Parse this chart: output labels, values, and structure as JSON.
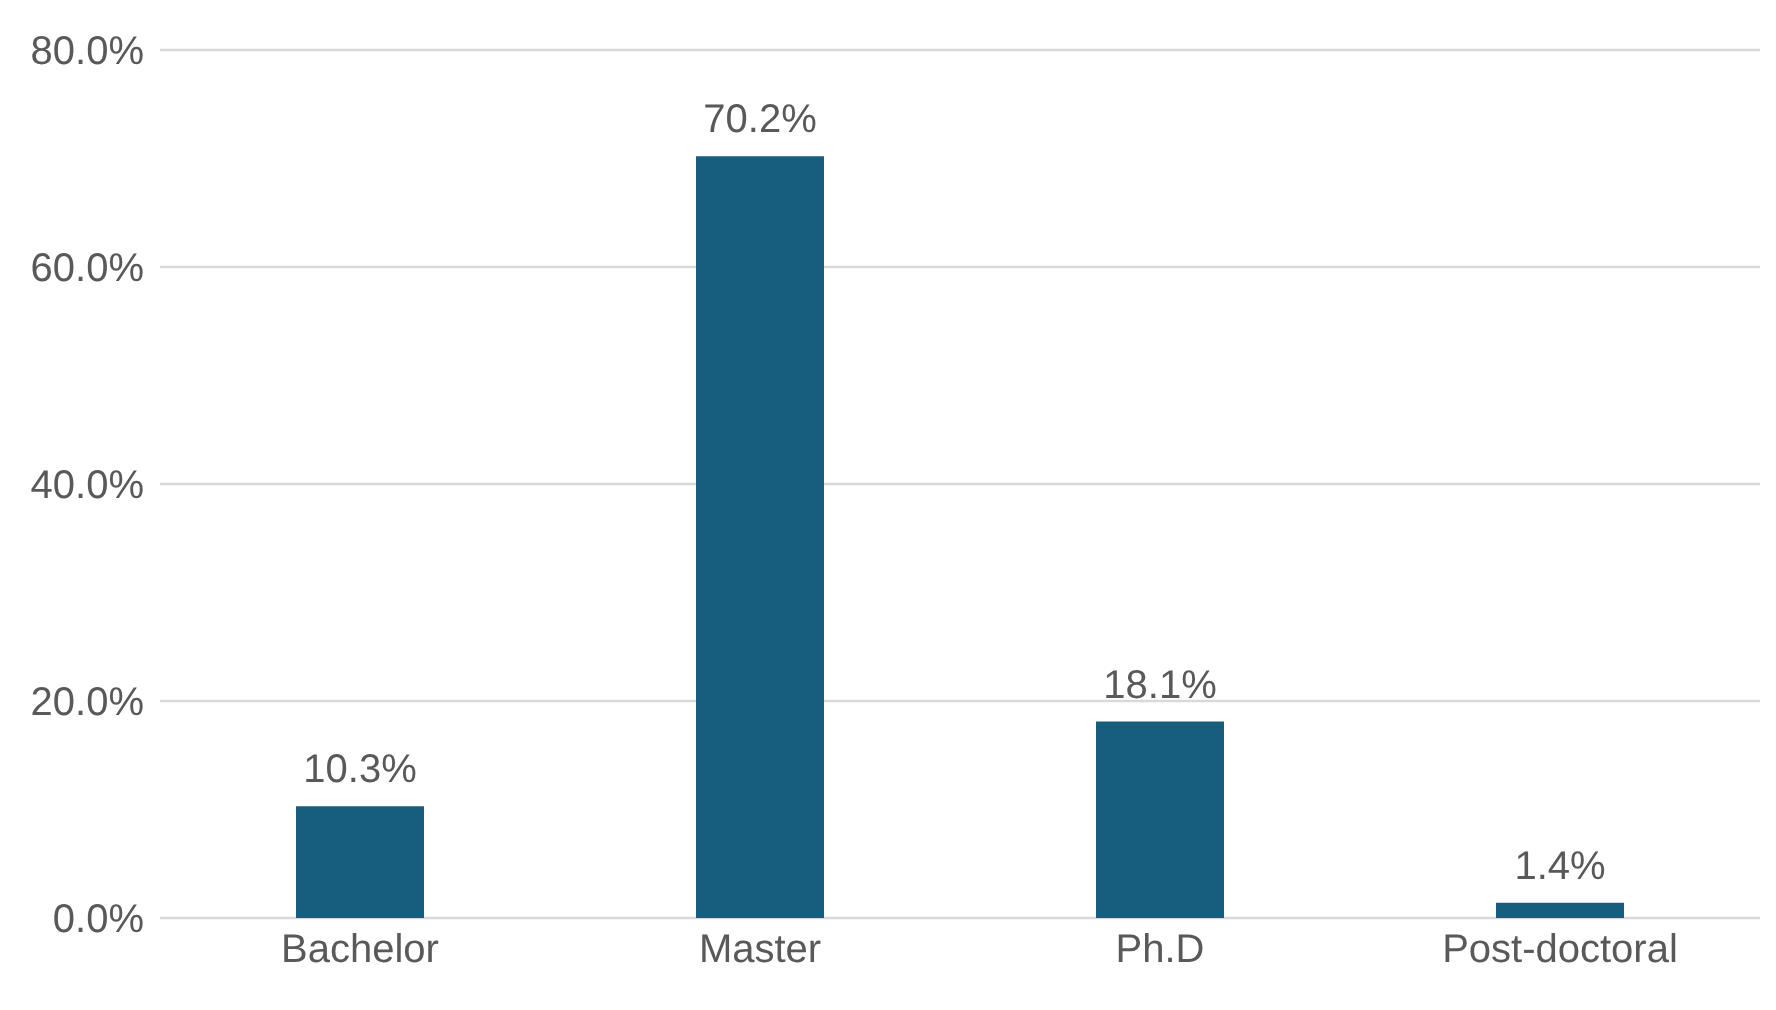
{
  "chart_data": {
    "type": "bar",
    "categories": [
      "Bachelor",
      "Master",
      "Ph.D",
      "Post-doctoral"
    ],
    "values": [
      10.3,
      70.2,
      18.1,
      1.4
    ],
    "value_labels": [
      "10.3%",
      "70.2%",
      "18.1%",
      "1.4%"
    ],
    "color": "#175e7e",
    "ylim": [
      0,
      80
    ],
    "yticks": [
      {
        "value": 0,
        "label": "0.0%"
      },
      {
        "value": 20,
        "label": "20.0%"
      },
      {
        "value": 40,
        "label": "40.0%"
      },
      {
        "value": 60,
        "label": "60.0%"
      },
      {
        "value": 80,
        "label": "80.0%"
      }
    ],
    "grid": "y",
    "legend": false
  }
}
